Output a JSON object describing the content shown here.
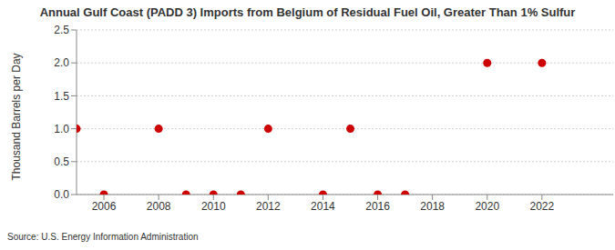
{
  "chart_data": {
    "type": "scatter",
    "title": "Annual Gulf Coast (PADD 3) Imports from Belgium of Residual Fuel Oil, Greater Than 1% Sulfur",
    "y_label": "Thousand Barrels per Day",
    "source": "Source: U.S. Energy Information Administration",
    "x": [
      2005,
      2006,
      2008,
      2009,
      2010,
      2011,
      2012,
      2014,
      2015,
      2016,
      2017,
      2020,
      2022
    ],
    "values": [
      1,
      0,
      1,
      0,
      0,
      0,
      1,
      0,
      1,
      0,
      0,
      2,
      2
    ],
    "color": "#cc0000",
    "marker": "circle",
    "xlim": [
      2005,
      2024.6
    ],
    "xticks": [
      2006,
      2008,
      2010,
      2012,
      2014,
      2016,
      2018,
      2020,
      2022
    ],
    "ylim": [
      0,
      2.5
    ],
    "yticks": [
      {
        "value": 0,
        "label": "0.0"
      },
      0.5,
      {
        "value": 1,
        "label": "1.0"
      },
      1.5,
      {
        "value": 2,
        "label": "2.0"
      },
      2.5
    ],
    "grid": true
  }
}
